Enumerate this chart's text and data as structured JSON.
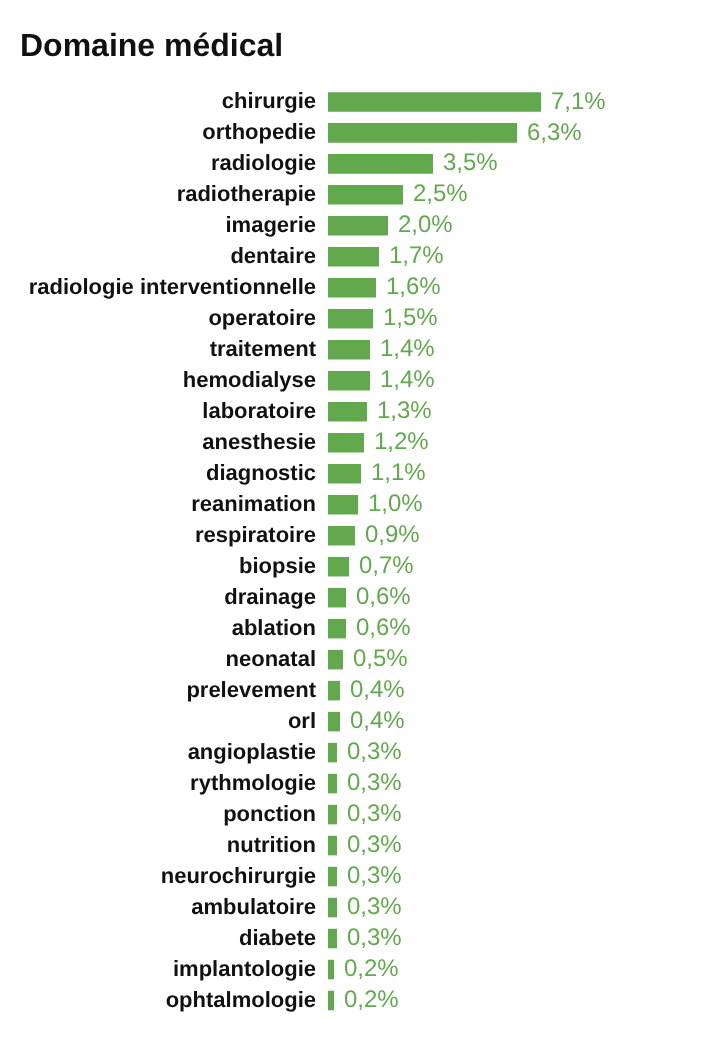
{
  "chart_data": {
    "type": "bar",
    "orientation": "horizontal",
    "title": "Domaine médical",
    "categories": [
      "chirurgie",
      "orthopedie",
      "radiologie",
      "radiotherapie",
      "imagerie",
      "dentaire",
      "radiologie interventionnelle",
      "operatoire",
      "traitement",
      "hemodialyse",
      "laboratoire",
      "anesthesie",
      "diagnostic",
      "reanimation",
      "respiratoire",
      "biopsie",
      "drainage",
      "ablation",
      "neonatal",
      "prelevement",
      "orl",
      "angioplastie",
      "rythmologie",
      "ponction",
      "nutrition",
      "neurochirurgie",
      "ambulatoire",
      "diabete",
      "implantologie",
      "ophtalmologie"
    ],
    "values": [
      7.1,
      6.3,
      3.5,
      2.5,
      2.0,
      1.7,
      1.6,
      1.5,
      1.4,
      1.4,
      1.3,
      1.2,
      1.1,
      1.0,
      0.9,
      0.7,
      0.6,
      0.6,
      0.5,
      0.4,
      0.4,
      0.3,
      0.3,
      0.3,
      0.3,
      0.3,
      0.3,
      0.3,
      0.2,
      0.2
    ],
    "value_labels": [
      "7,1%",
      "6,3%",
      "3,5%",
      "2,5%",
      "2,0%",
      "1,7%",
      "1,6%",
      "1,5%",
      "1,4%",
      "1,4%",
      "1,3%",
      "1,2%",
      "1,1%",
      "1,0%",
      "0,9%",
      "0,7%",
      "0,6%",
      "0,6%",
      "0,5%",
      "0,4%",
      "0,4%",
      "0,3%",
      "0,3%",
      "0,3%",
      "0,3%",
      "0,3%",
      "0,3%",
      "0,3%",
      "0,2%",
      "0,2%"
    ],
    "color": "#62a94e",
    "legend": false,
    "tick_labels": "y"
  }
}
